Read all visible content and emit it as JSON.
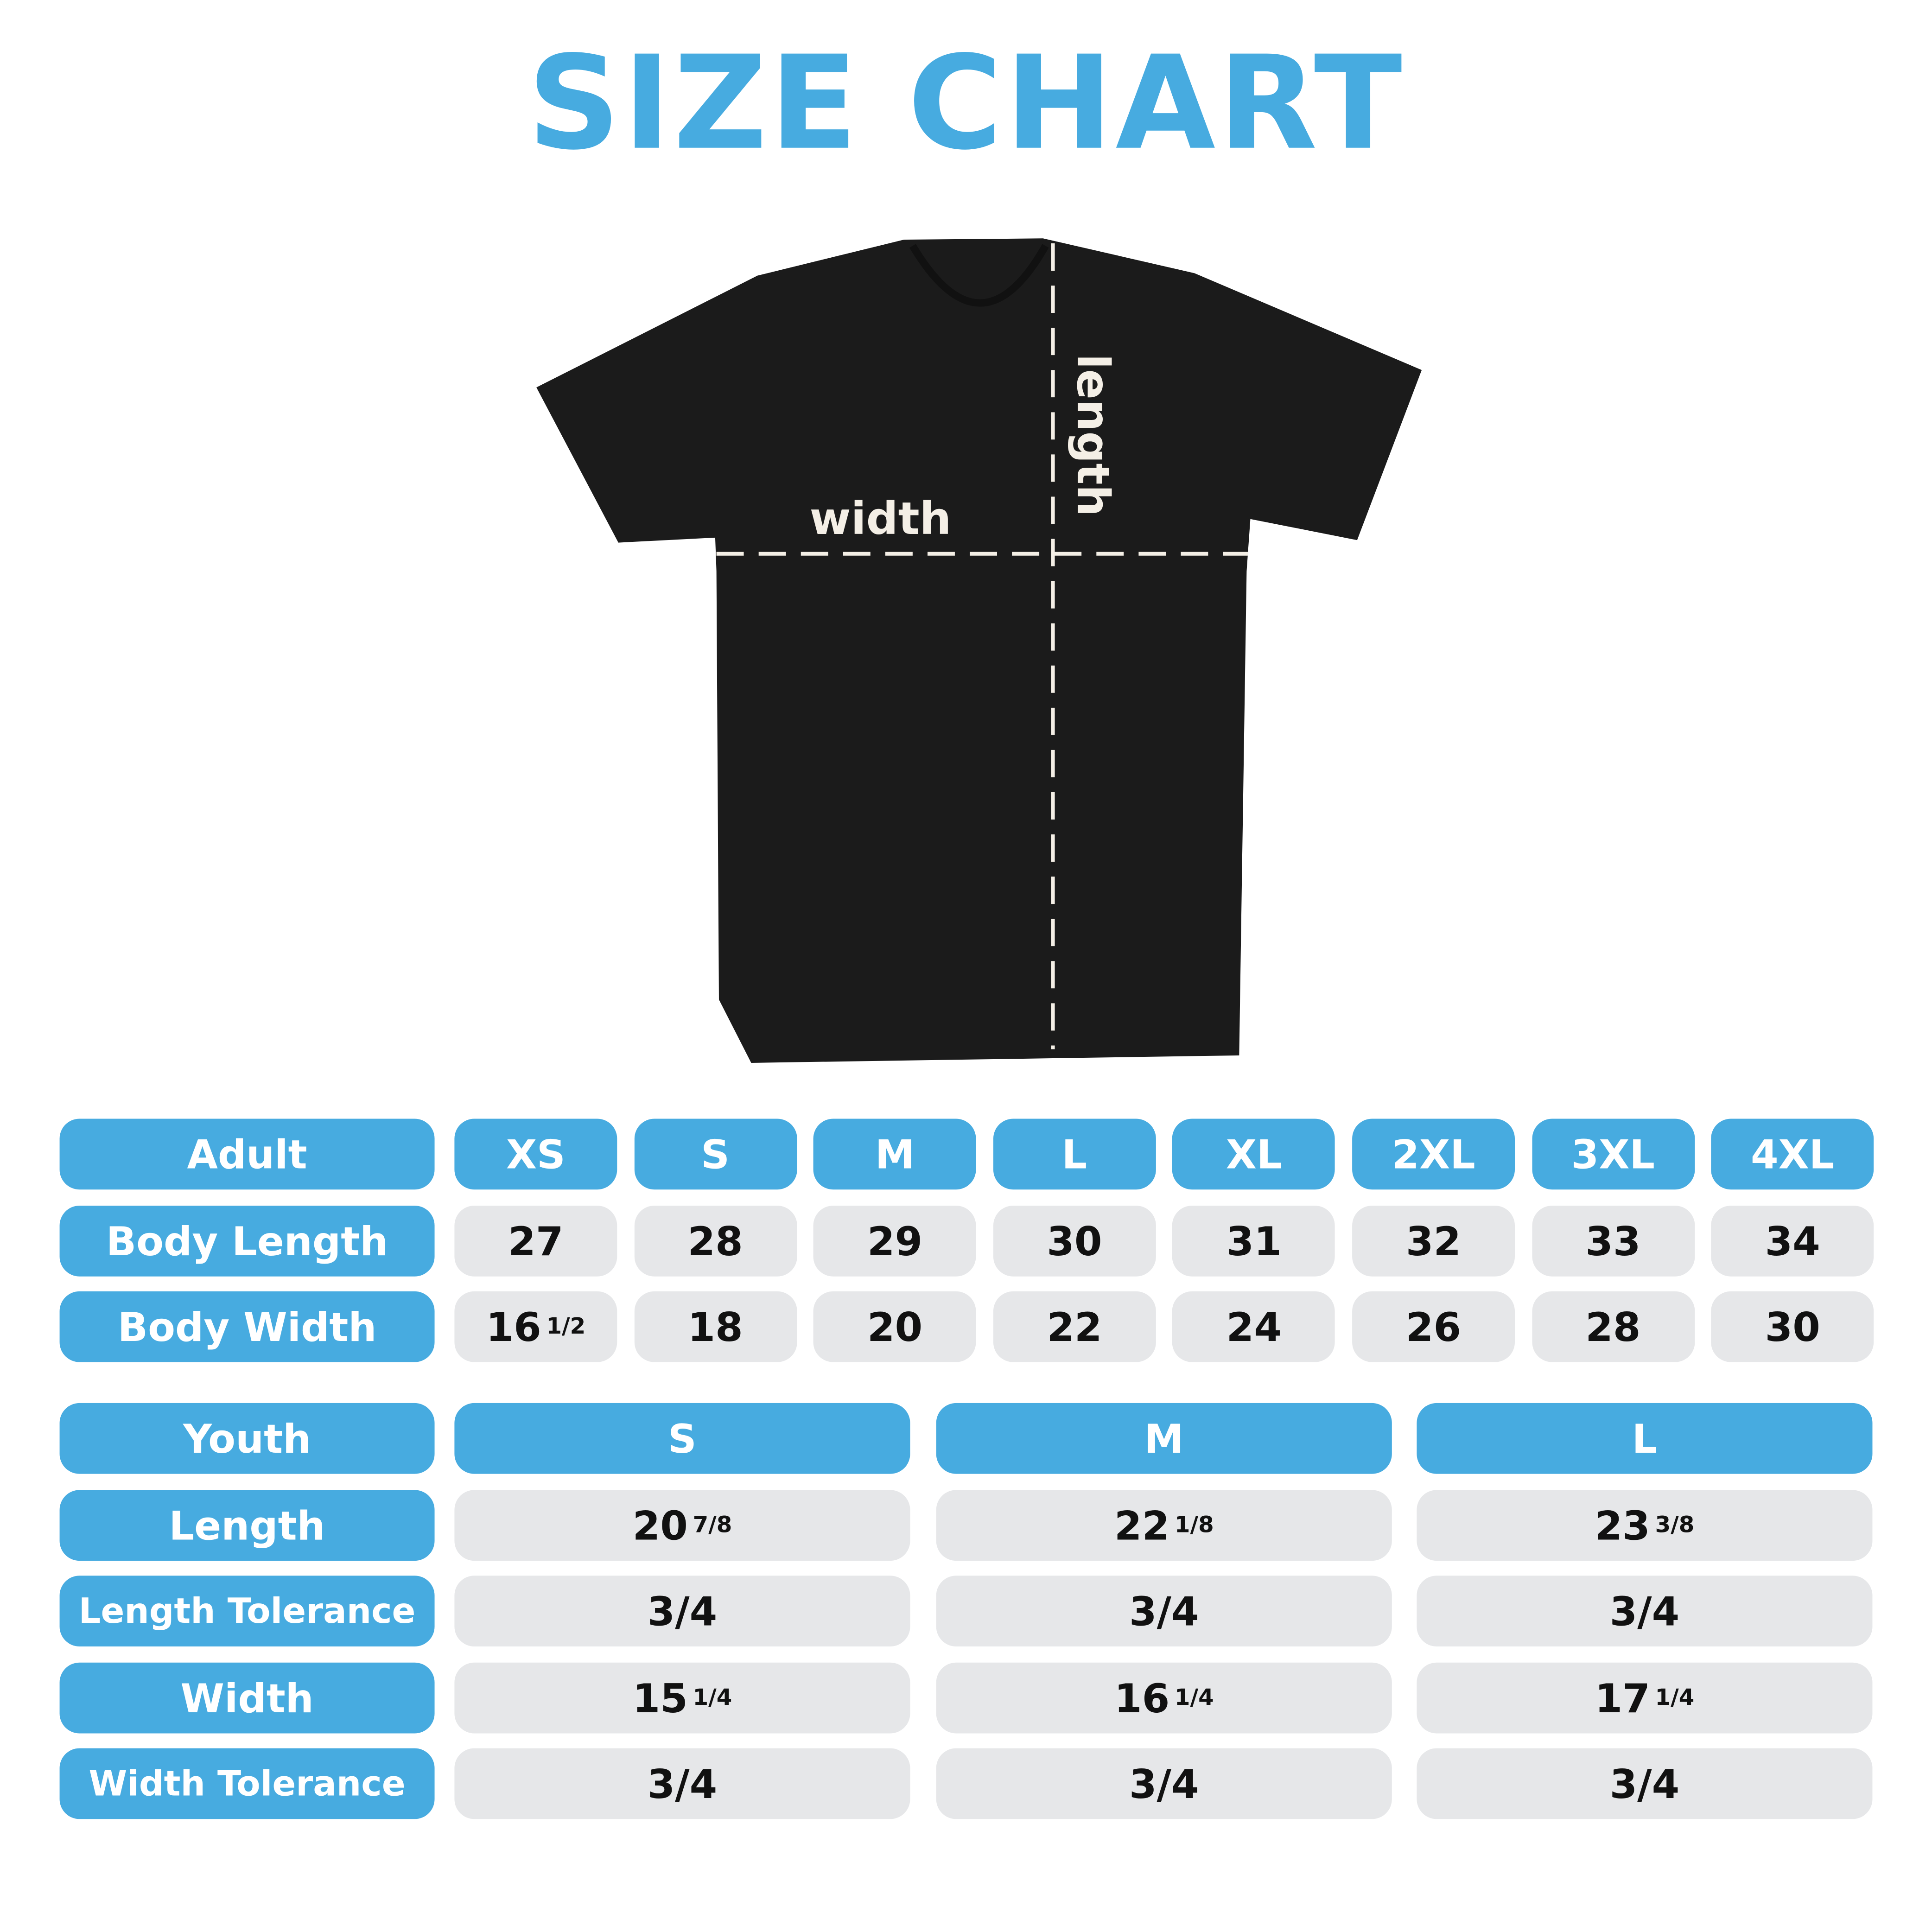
{
  "title": "SIZE CHART",
  "colors": {
    "accent": "#47abe0",
    "cell": "#e6e7e9",
    "shirt": "#1b1b1b"
  },
  "diagram": {
    "width_label": "width",
    "length_label": "length"
  },
  "adult": {
    "header": "Adult",
    "sizes": [
      "XS",
      "S",
      "M",
      "L",
      "XL",
      "2XL",
      "3XL",
      "4XL"
    ],
    "rows": [
      {
        "label": "Body Length",
        "values": [
          {
            "main": "27"
          },
          {
            "main": "28"
          },
          {
            "main": "29"
          },
          {
            "main": "30"
          },
          {
            "main": "31"
          },
          {
            "main": "32"
          },
          {
            "main": "33"
          },
          {
            "main": "34"
          }
        ]
      },
      {
        "label": "Body Width",
        "values": [
          {
            "main": "16",
            "frac": "1/2"
          },
          {
            "main": "18"
          },
          {
            "main": "20"
          },
          {
            "main": "22"
          },
          {
            "main": "24"
          },
          {
            "main": "26"
          },
          {
            "main": "28"
          },
          {
            "main": "30"
          }
        ]
      }
    ]
  },
  "youth": {
    "header": "Youth",
    "sizes": [
      "S",
      "M",
      "L"
    ],
    "rows": [
      {
        "label": "Length",
        "values": [
          {
            "main": "20",
            "frac": "7/8"
          },
          {
            "main": "22",
            "frac": "1/8"
          },
          {
            "main": "23",
            "frac": "3/8"
          }
        ]
      },
      {
        "label": "Length Tolerance",
        "values": [
          {
            "main": "3/4"
          },
          {
            "main": "3/4"
          },
          {
            "main": "3/4"
          }
        ]
      },
      {
        "label": "Width",
        "values": [
          {
            "main": "15",
            "frac": "1/4"
          },
          {
            "main": "16",
            "frac": "1/4"
          },
          {
            "main": "17",
            "frac": "1/4"
          }
        ]
      },
      {
        "label": "Width Tolerance",
        "values": [
          {
            "main": "3/4"
          },
          {
            "main": "3/4"
          },
          {
            "main": "3/4"
          }
        ]
      }
    ]
  }
}
